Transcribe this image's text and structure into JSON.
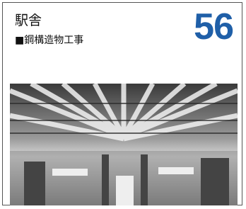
{
  "header": {
    "title": "駅舎",
    "subtitle": "■鋼構造物工事",
    "number": 56
  }
}
